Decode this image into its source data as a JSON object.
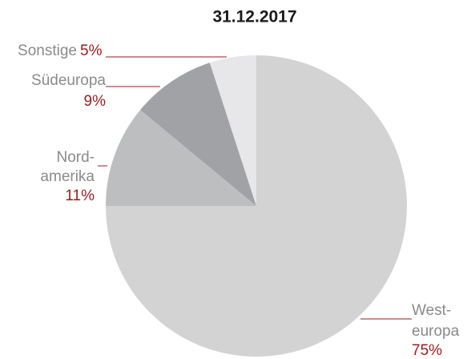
{
  "chart_data": {
    "type": "pie",
    "title": "31.12.2017",
    "categories": [
      [
        "West-",
        "europa"
      ],
      [
        "Nord-",
        "amerika"
      ],
      [
        "Südeuropa"
      ],
      [
        "Sonstige"
      ]
    ],
    "values": [
      75,
      11,
      9,
      5
    ],
    "value_labels": [
      "75%",
      "11%",
      "9%",
      "5%"
    ],
    "colors": [
      "#d3d3d4",
      "#bdbec0",
      "#a1a2a5",
      "#e7e7e9"
    ],
    "label_color": "#9b1b1e"
  }
}
